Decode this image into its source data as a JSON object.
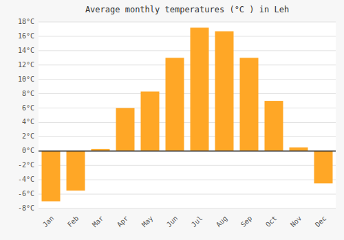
{
  "chart_data": {
    "type": "bar",
    "title": "Average monthly temperatures (°C ) in Leh",
    "categories": [
      "Jan",
      "Feb",
      "Mar",
      "Apr",
      "May",
      "Jun",
      "Jul",
      "Aug",
      "Sep",
      "Oct",
      "Nov",
      "Dec"
    ],
    "values": [
      -7.0,
      -5.5,
      0.3,
      6.0,
      8.3,
      13.0,
      17.2,
      16.7,
      13.0,
      7.0,
      0.5,
      -4.5
    ],
    "color": "#FFA726",
    "ylim": [
      -8,
      18
    ],
    "yticks": [
      {
        "value": -8,
        "label": "-8°C"
      },
      {
        "value": -6,
        "label": "-6°C"
      },
      {
        "value": -4,
        "label": "-4°C"
      },
      {
        "value": -2,
        "label": "-2°C"
      },
      {
        "value": 0,
        "label": "0°C"
      },
      {
        "value": 2,
        "label": "2°C"
      },
      {
        "value": 4,
        "label": "4°C"
      },
      {
        "value": 6,
        "label": "6°C"
      },
      {
        "value": 8,
        "label": "8°C"
      },
      {
        "value": 10,
        "label": "10°C"
      },
      {
        "value": 12,
        "label": "12°C"
      },
      {
        "value": 14,
        "label": "14°C"
      },
      {
        "value": 16,
        "label": "16°C"
      },
      {
        "value": 18,
        "label": "18°C"
      }
    ],
    "grid": true
  }
}
